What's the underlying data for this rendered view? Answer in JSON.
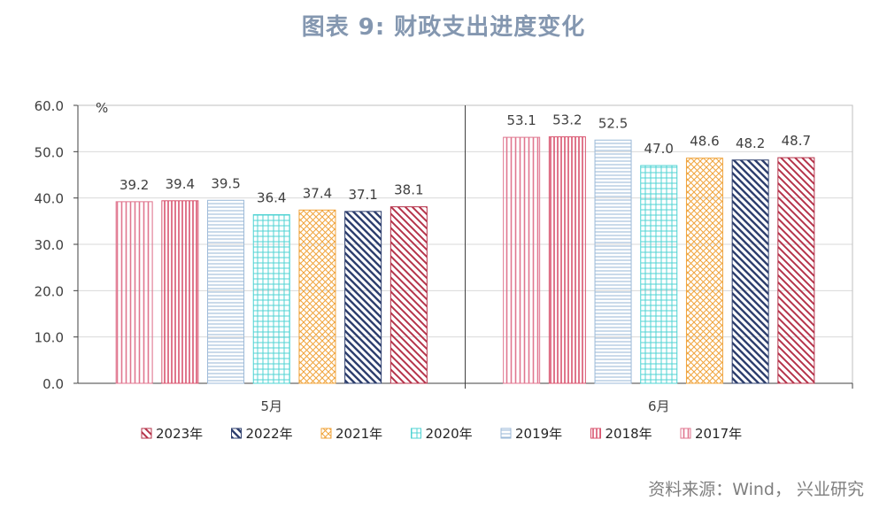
{
  "title": "图表 9: 财政支出进度变化",
  "source": "资料来源：Wind， 兴业研究",
  "chart_data": {
    "type": "bar",
    "unit": "%",
    "categories": [
      "5月",
      "6月"
    ],
    "ylim": [
      0,
      60
    ],
    "yticks": [
      "0.0",
      "10.0",
      "20.0",
      "30.0",
      "40.0",
      "50.0",
      "60.0"
    ],
    "series": [
      {
        "name": "2017年",
        "values": [
          39.2,
          53.1
        ],
        "color": "#e0768f",
        "pattern": "vert"
      },
      {
        "name": "2018年",
        "values": [
          39.4,
          53.2
        ],
        "color": "#d9536e",
        "pattern": "vert-dense"
      },
      {
        "name": "2019年",
        "values": [
          39.5,
          52.5
        ],
        "color": "#9dbad8",
        "pattern": "horiz"
      },
      {
        "name": "2020年",
        "values": [
          36.4,
          47.0
        ],
        "color": "#4fd3d3",
        "pattern": "grid"
      },
      {
        "name": "2021年",
        "values": [
          37.4,
          48.6
        ],
        "color": "#f0a43c",
        "pattern": "cross"
      },
      {
        "name": "2022年",
        "values": [
          37.1,
          48.2
        ],
        "color": "#2e3f6e",
        "pattern": "diag-bold"
      },
      {
        "name": "2023年",
        "values": [
          38.1,
          48.7
        ],
        "color": "#b5334a",
        "pattern": "diag"
      }
    ],
    "legend_order": [
      "2023年",
      "2022年",
      "2021年",
      "2020年",
      "2019年",
      "2018年",
      "2017年"
    ],
    "legend_position": "bottom",
    "grid": true
  }
}
